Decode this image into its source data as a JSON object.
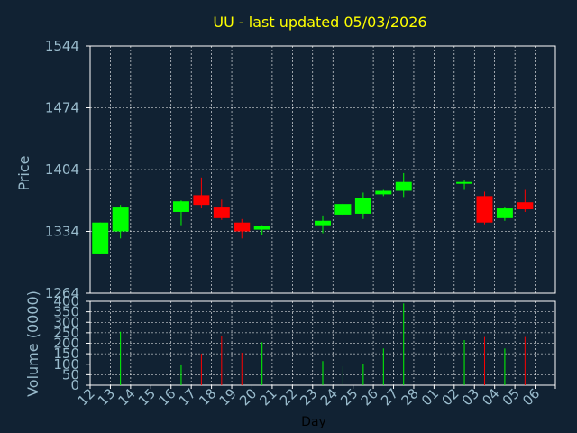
{
  "chart_data": [
    {
      "type": "candlestick",
      "title": "UU - last updated 05/03/2026",
      "ylabel": "Price",
      "ylim": [
        1264,
        1544
      ],
      "yticks": [
        1264,
        1334,
        1404,
        1474,
        1544
      ],
      "grid": true,
      "categories": [
        "12",
        "13",
        "14",
        "15",
        "16",
        "17",
        "18",
        "19",
        "20",
        "21",
        "22",
        "23",
        "24",
        "25",
        "26",
        "27",
        "28",
        "01",
        "02",
        "03",
        "04",
        "05",
        "06"
      ],
      "candles": [
        {
          "x": "12",
          "open": 1308,
          "close": 1344,
          "high": 1344,
          "low": 1308
        },
        {
          "x": "13",
          "open": 1334,
          "close": 1361,
          "high": 1364,
          "low": 1326
        },
        {
          "x": "16",
          "open": 1356,
          "close": 1368,
          "high": 1369,
          "low": 1341
        },
        {
          "x": "17",
          "open": 1375,
          "close": 1364,
          "high": 1395,
          "low": 1360
        },
        {
          "x": "18",
          "open": 1361,
          "close": 1349,
          "high": 1370,
          "low": 1347
        },
        {
          "x": "19",
          "open": 1344,
          "close": 1334,
          "high": 1348,
          "low": 1326
        },
        {
          "x": "20",
          "open": 1336,
          "close": 1340,
          "high": 1341,
          "low": 1330
        },
        {
          "x": "23",
          "open": 1341,
          "close": 1346,
          "high": 1352,
          "low": 1332
        },
        {
          "x": "24",
          "open": 1353,
          "close": 1365,
          "high": 1366,
          "low": 1352
        },
        {
          "x": "25",
          "open": 1354,
          "close": 1372,
          "high": 1378,
          "low": 1348
        },
        {
          "x": "26",
          "open": 1376,
          "close": 1380,
          "high": 1381,
          "low": 1374
        },
        {
          "x": "27",
          "open": 1380,
          "close": 1390,
          "high": 1400,
          "low": 1373
        },
        {
          "x": "02",
          "open": 1389,
          "close": 1390,
          "high": 1392,
          "low": 1381
        },
        {
          "x": "03",
          "open": 1374,
          "close": 1344,
          "high": 1379,
          "low": 1342
        },
        {
          "x": "04",
          "open": 1349,
          "close": 1360,
          "high": 1361,
          "low": 1346
        },
        {
          "x": "05",
          "open": 1367,
          "close": 1359,
          "high": 1381,
          "low": 1356
        }
      ],
      "colors": {
        "up": "#00ff00",
        "down": "#ff0000",
        "grid": "#ffffff",
        "axis": "#99bbcc",
        "title": "#ffff00",
        "background": "#112233"
      }
    },
    {
      "type": "bar",
      "xlabel": "Day",
      "ylabel": "Volume (0000)",
      "ylim": [
        0,
        400
      ],
      "yticks": [
        0,
        50,
        100,
        150,
        200,
        250,
        300,
        350,
        400
      ],
      "grid": true,
      "categories": [
        "12",
        "13",
        "14",
        "15",
        "16",
        "17",
        "18",
        "19",
        "20",
        "21",
        "22",
        "23",
        "24",
        "25",
        "26",
        "27",
        "28",
        "01",
        "02",
        "03",
        "04",
        "05",
        "06"
      ],
      "bars": [
        {
          "x": "13",
          "value": 255,
          "dir": "up"
        },
        {
          "x": "16",
          "value": 95,
          "dir": "up"
        },
        {
          "x": "17",
          "value": 150,
          "dir": "down"
        },
        {
          "x": "18",
          "value": 235,
          "dir": "down"
        },
        {
          "x": "19",
          "value": 155,
          "dir": "down"
        },
        {
          "x": "20",
          "value": 205,
          "dir": "up"
        },
        {
          "x": "23",
          "value": 115,
          "dir": "up"
        },
        {
          "x": "24",
          "value": 90,
          "dir": "up"
        },
        {
          "x": "25",
          "value": 100,
          "dir": "up"
        },
        {
          "x": "26",
          "value": 175,
          "dir": "up"
        },
        {
          "x": "27",
          "value": 390,
          "dir": "up"
        },
        {
          "x": "02",
          "value": 215,
          "dir": "up"
        },
        {
          "x": "03",
          "value": 230,
          "dir": "down"
        },
        {
          "x": "04",
          "value": 175,
          "dir": "up"
        },
        {
          "x": "05",
          "value": 230,
          "dir": "down"
        }
      ]
    }
  ]
}
